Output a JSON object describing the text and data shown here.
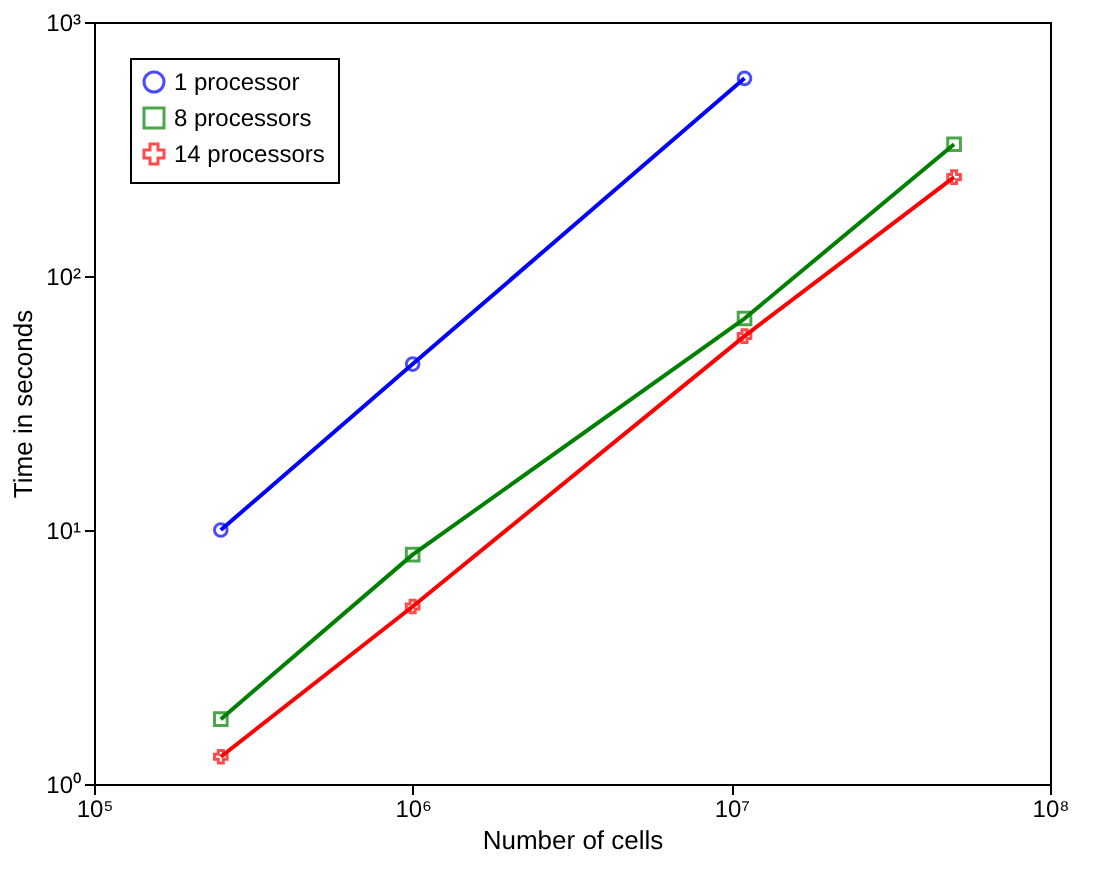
{
  "chart_data": {
    "type": "line",
    "xlabel": "Number of cells",
    "ylabel": "Time in seconds",
    "log": "xy",
    "grid": false,
    "legend": "top left",
    "xlim": [
      100000,
      100000000
    ],
    "ylim": [
      1,
      1000
    ],
    "xticks": [
      {
        "value": 100000,
        "label": "10⁵"
      },
      {
        "value": 1000000,
        "label": "10⁶"
      },
      {
        "value": 10000000,
        "label": "10⁷"
      },
      {
        "value": 100000000,
        "label": "10⁸"
      }
    ],
    "yticks": [
      {
        "value": 1,
        "label": "10⁰"
      },
      {
        "value": 10,
        "label": "10¹"
      },
      {
        "value": 100,
        "label": "10²"
      },
      {
        "value": 1000,
        "label": "10³"
      }
    ],
    "series": [
      {
        "name": "1 processor",
        "color": "#0000ff",
        "marker": "circle",
        "x": [
          250000,
          1000000,
          11000000
        ],
        "values": [
          10,
          45,
          600
        ]
      },
      {
        "name": "8 processors",
        "color": "#008000",
        "marker": "square",
        "x": [
          250000,
          1000000,
          11000000,
          50000000
        ],
        "values": [
          1.8,
          8,
          68,
          330
        ]
      },
      {
        "name": "14 processors",
        "color": "#ff0000",
        "marker": "cross",
        "x": [
          250000,
          1000000,
          11000000,
          50000000
        ],
        "values": [
          1.28,
          5,
          58,
          245
        ]
      }
    ]
  }
}
